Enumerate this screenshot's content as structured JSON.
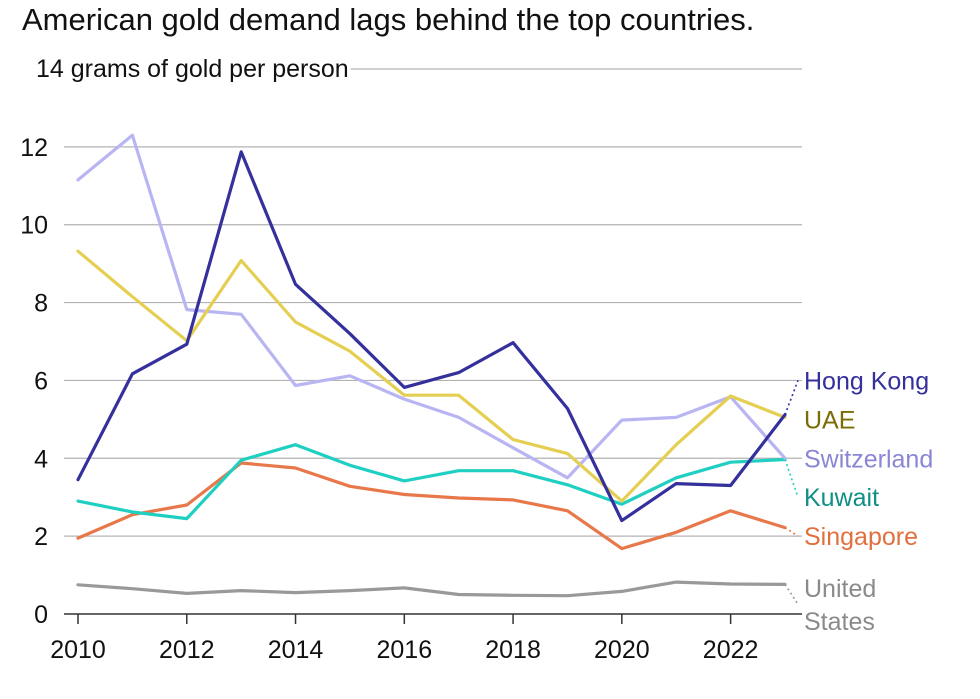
{
  "chart_data": {
    "type": "line",
    "title": "American gold demand lags behind the top countries.",
    "ylabel": "grams of gold per person",
    "top_tick_label": "14 grams of gold per person",
    "ylim": [
      0,
      14
    ],
    "yticks": [
      0,
      2,
      4,
      6,
      8,
      10,
      12
    ],
    "xlim": [
      2010,
      2023
    ],
    "xticks": [
      2010,
      2012,
      2014,
      2016,
      2018,
      2020,
      2022
    ],
    "x": [
      2010,
      2011,
      2012,
      2013,
      2014,
      2015,
      2016,
      2017,
      2018,
      2019,
      2020,
      2021,
      2022,
      2023
    ],
    "series": [
      {
        "name": "United States",
        "label_lines": [
          "United",
          "States"
        ],
        "color": "#999999",
        "label_color": "#8a8a8a",
        "label_y": 0.25,
        "values": [
          0.75,
          0.65,
          0.53,
          0.6,
          0.55,
          0.6,
          0.67,
          0.5,
          0.48,
          0.47,
          0.58,
          0.82,
          0.77,
          0.76
        ]
      },
      {
        "name": "Singapore",
        "label_lines": [
          "Singapore"
        ],
        "color": "#e8784a",
        "label_color": "#e0703e",
        "label_y": 2.0,
        "values": [
          1.95,
          2.55,
          2.8,
          3.88,
          3.75,
          3.28,
          3.07,
          2.98,
          2.93,
          2.65,
          1.68,
          2.1,
          2.65,
          2.22
        ]
      },
      {
        "name": "Kuwait",
        "label_lines": [
          "Kuwait"
        ],
        "color": "#1fcfc1",
        "label_color": "#0f8f85",
        "label_y": 3.0,
        "values": [
          2.9,
          2.62,
          2.45,
          3.95,
          4.35,
          3.82,
          3.42,
          3.68,
          3.68,
          3.32,
          2.82,
          3.5,
          3.9,
          3.97
        ]
      },
      {
        "name": "Switzerland",
        "label_lines": [
          "Switzerland"
        ],
        "color": "#b8b5f2",
        "label_color": "#8a86d4",
        "label_y": 4.0,
        "values": [
          11.15,
          12.3,
          7.82,
          7.7,
          5.87,
          6.12,
          5.52,
          5.05,
          4.27,
          3.5,
          4.98,
          5.05,
          5.58,
          4.0
        ]
      },
      {
        "name": "UAE",
        "label_lines": [
          "UAE"
        ],
        "color": "#e5cf52",
        "label_color": "#7c6c05",
        "label_y": 5.0,
        "values": [
          9.32,
          8.15,
          7.02,
          9.08,
          7.5,
          6.75,
          5.62,
          5.62,
          4.48,
          4.12,
          2.9,
          4.35,
          5.6,
          5.05
        ]
      },
      {
        "name": "Hong Kong",
        "label_lines": [
          "Hong Kong"
        ],
        "color": "#34309c",
        "label_color": "#34309c",
        "label_y": 6.0,
        "values": [
          3.45,
          6.17,
          6.93,
          11.87,
          8.47,
          7.2,
          5.82,
          6.2,
          6.97,
          5.28,
          2.4,
          3.35,
          3.3,
          5.12
        ]
      }
    ]
  }
}
